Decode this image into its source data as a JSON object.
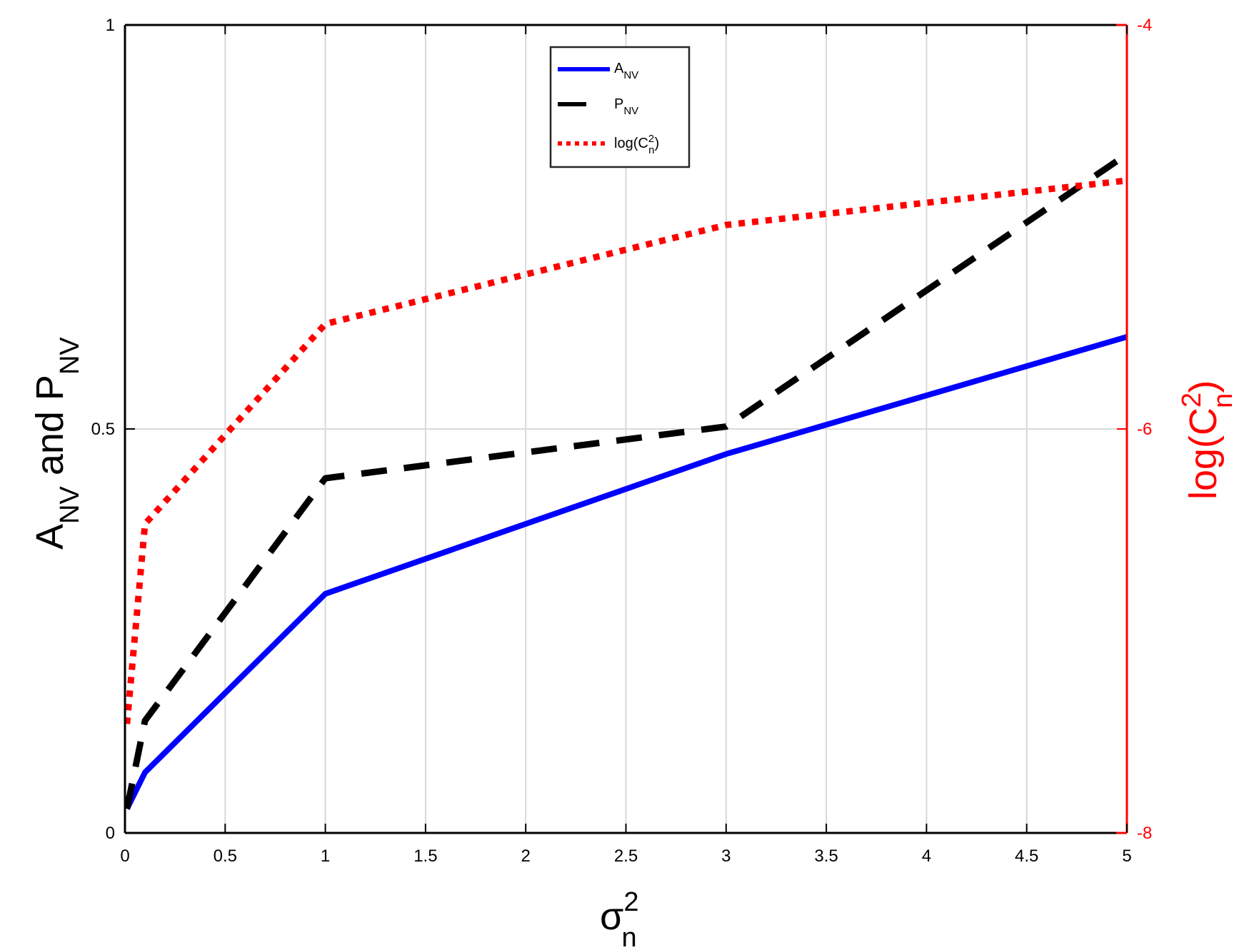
{
  "chart_data": {
    "type": "line",
    "title": "",
    "xlabel": "σ_n^2",
    "ylabel_left": "A_NV and P_NV",
    "ylabel_right": "log(C_n^2)",
    "xlim": [
      0,
      5
    ],
    "ylim_left": [
      0,
      1
    ],
    "ylim_right": [
      -8,
      -4
    ],
    "grid": true,
    "legend_position": "top-center",
    "x_ticks": [
      "0",
      "0.5",
      "1",
      "1.5",
      "2",
      "2.5",
      "3",
      "3.5",
      "4",
      "4.5",
      "5"
    ],
    "y_ticks_left": [
      "0",
      "0.5",
      "1"
    ],
    "y_ticks_right": [
      "-8",
      "-6",
      "-4"
    ],
    "x": [
      0.01,
      0.1,
      1,
      3,
      5
    ],
    "series": [
      {
        "name": "A_NV",
        "axis": "left",
        "style": "solid",
        "color": "#0000ff",
        "values": [
          0.03,
          0.075,
          0.296,
          0.469,
          0.614
        ]
      },
      {
        "name": "P_NV",
        "axis": "left",
        "style": "dashed",
        "color": "#000000",
        "values": [
          0.03,
          0.139,
          0.439,
          0.503,
          0.84
        ]
      },
      {
        "name": "log(C_n^2)",
        "axis": "right",
        "style": "dotted",
        "color": "#ff0000",
        "values": [
          -7.46,
          -6.47,
          -5.48,
          -4.99,
          -4.77
        ]
      }
    ]
  },
  "labels": {
    "x_main": "σ",
    "x_sup": "2",
    "x_sub": "n",
    "yl_a": "A",
    "yl_sub1": "NV",
    "yl_and": " and P",
    "yl_sub2": "NV",
    "yr_main": "log(C",
    "yr_sup": "2",
    "yr_sub": "n",
    "yr_close": ")"
  },
  "legend": [
    {
      "main": "A",
      "sub": "NV"
    },
    {
      "main": "P",
      "sub": "NV"
    },
    {
      "main": "log(C",
      "sup": "2",
      "sub": "n",
      "close": ")"
    }
  ]
}
